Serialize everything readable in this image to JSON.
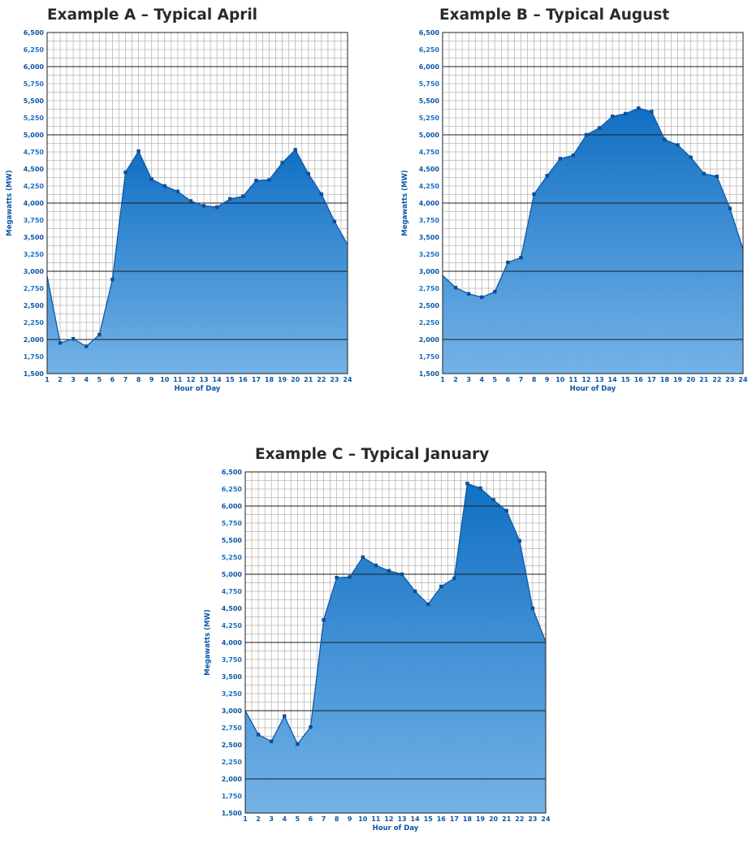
{
  "chart_data": [
    {
      "type": "area",
      "title": "Example A – Typical April",
      "xlabel": "Hour of Day",
      "ylabel": "Megawatts (MW)",
      "ylim": [
        1500,
        6500
      ],
      "yticks": [
        "1,500",
        "1,750",
        "2,000",
        "2,250",
        "2,500",
        "2,750",
        "3,000",
        "3,250",
        "3,500",
        "3,750",
        "4,000",
        "4,250",
        "4,500",
        "4,750",
        "5,000",
        "5,250",
        "5,500",
        "5,750",
        "6,000",
        "6,250",
        "6,500"
      ],
      "x": [
        "1",
        "2",
        "3",
        "4",
        "5",
        "6",
        "7",
        "8",
        "9",
        "10",
        "11",
        "12",
        "13",
        "14",
        "15",
        "16",
        "17",
        "18",
        "19",
        "20",
        "21",
        "22",
        "23",
        "24"
      ],
      "values": [
        2930,
        1950,
        2010,
        1900,
        2070,
        2880,
        4450,
        4760,
        4350,
        4250,
        4170,
        4030,
        3960,
        3940,
        4060,
        4100,
        4330,
        4340,
        4590,
        4780,
        4430,
        4130,
        3730,
        3390
      ],
      "grid": true
    },
    {
      "type": "area",
      "title": "Example B – Typical August",
      "xlabel": "Hour of Day",
      "ylabel": "Megawatts (MW)",
      "ylim": [
        1500,
        6500
      ],
      "yticks": [
        "1,500",
        "1,750",
        "2,000",
        "2,250",
        "2,500",
        "2,750",
        "3,000",
        "3,250",
        "3,500",
        "3,750",
        "4,000",
        "4,250",
        "4,500",
        "4,750",
        "5,000",
        "5,250",
        "5,500",
        "5,750",
        "6,000",
        "6,250",
        "6,500"
      ],
      "x": [
        "1",
        "2",
        "3",
        "4",
        "5",
        "6",
        "7",
        "8",
        "9",
        "10",
        "11",
        "12",
        "13",
        "14",
        "15",
        "16",
        "17",
        "18",
        "19",
        "20",
        "21",
        "22",
        "23",
        "24"
      ],
      "values": [
        2940,
        2760,
        2670,
        2620,
        2700,
        3130,
        3200,
        4130,
        4400,
        4650,
        4700,
        5000,
        5100,
        5270,
        5310,
        5390,
        5340,
        4930,
        4850,
        4670,
        4430,
        4390,
        3920,
        3320
      ],
      "grid": true
    },
    {
      "type": "area",
      "title": "Example C – Typical January",
      "xlabel": "Hour of Day",
      "ylabel": "Megawatts (MW)",
      "ylim": [
        1500,
        6500
      ],
      "yticks": [
        "1,500",
        "1,750",
        "2,000",
        "2,250",
        "2,500",
        "2,750",
        "3,000",
        "3,250",
        "3,500",
        "3,750",
        "4,000",
        "4,250",
        "4,500",
        "4,750",
        "5,000",
        "5,250",
        "5,500",
        "5,750",
        "6,000",
        "6,250",
        "6,500"
      ],
      "x": [
        "1",
        "2",
        "3",
        "4",
        "5",
        "6",
        "7",
        "8",
        "9",
        "10",
        "11",
        "12",
        "13",
        "14",
        "15",
        "16",
        "17",
        "18",
        "19",
        "20",
        "21",
        "22",
        "23",
        "24"
      ],
      "values": [
        3000,
        2650,
        2550,
        2920,
        2510,
        2760,
        4330,
        4950,
        4960,
        5250,
        5130,
        5050,
        5000,
        4750,
        4560,
        4820,
        4940,
        6330,
        6260,
        6090,
        5930,
        5490,
        4500,
        4010
      ],
      "grid": true
    }
  ],
  "colors": {
    "fill_top": "#0a6bc2",
    "fill_bottom": "#6fb0e6",
    "line": "#0d5aa8",
    "marker": "#0d4f99",
    "grid_minor": "#b7b7b7",
    "grid_major": "#1c1c1c",
    "tick_text": "#0b57a6"
  }
}
